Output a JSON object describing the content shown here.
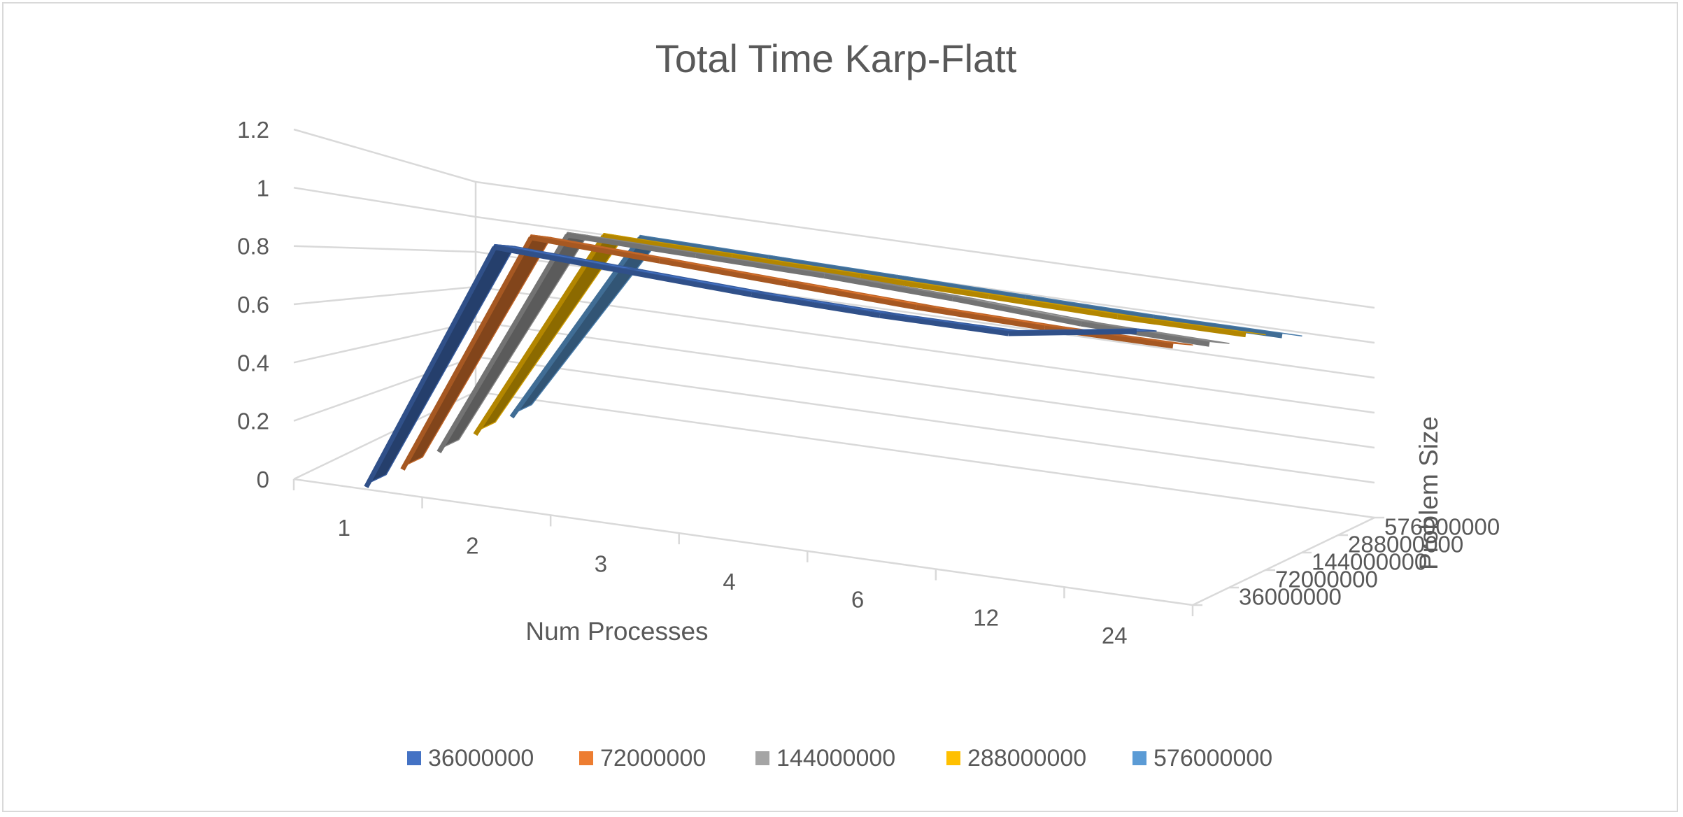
{
  "chart_data": {
    "type": "line",
    "subtype": "3d-line",
    "title": "Total Time Karp-Flatt",
    "xlabel": "Num Processes",
    "ylabel": "",
    "zlabel": "Problem Size",
    "categories": [
      "1",
      "2",
      "3",
      "4",
      "6",
      "12",
      "24"
    ],
    "y_ticks": [
      "0",
      "0.2",
      "0.4",
      "0.6",
      "0.8",
      "1",
      "1.2"
    ],
    "ylim": [
      0,
      1.2
    ],
    "grid": true,
    "legend_position": "bottom",
    "series": [
      {
        "name": "36000000",
        "color": "#4472C4",
        "values": [
          0,
          0.9,
          0.88,
          0.86,
          0.85,
          0.85,
          0.92
        ]
      },
      {
        "name": "72000000",
        "color": "#ED7D31",
        "values": [
          0,
          0.95,
          0.93,
          0.91,
          0.89,
          0.88,
          0.88
        ]
      },
      {
        "name": "144000000",
        "color": "#A5A5A5",
        "values": [
          0,
          0.98,
          0.97,
          0.96,
          0.94,
          0.91,
          0.9
        ]
      },
      {
        "name": "288000000",
        "color": "#FFC000",
        "values": [
          0,
          1.0,
          0.99,
          0.98,
          0.97,
          0.96,
          0.96
        ]
      },
      {
        "name": "576000000",
        "color": "#5B9BD5",
        "values": [
          0,
          1.02,
          1.01,
          1.0,
          0.99,
          0.98,
          0.98
        ]
      }
    ]
  }
}
